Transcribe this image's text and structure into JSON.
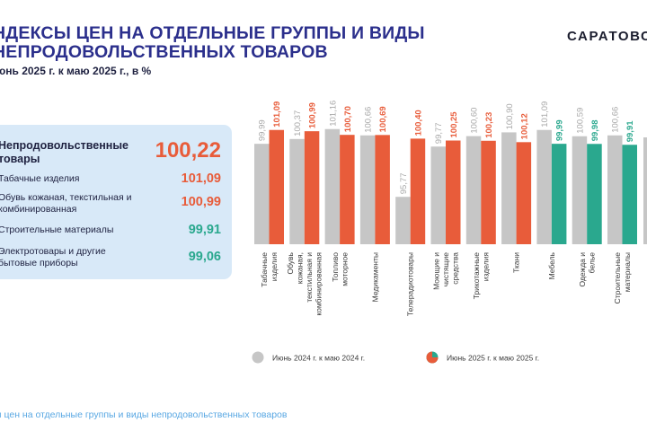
{
  "header": {
    "title_line1": "НДЕКСЫ ЦЕН НА ОТДЕЛЬНЫЕ ГРУППЫ И ВИДЫ",
    "title_line2": "НЕПРОДОВОЛЬСТВЕННЫХ ТОВАРОВ",
    "subtitle": "юнь 2025 г. к маю 2025 г., в %",
    "brand": "САРАТОВС"
  },
  "summary_panel": {
    "rows": [
      {
        "label": "Непродовольственные товары",
        "value": "100,22",
        "color": "#e85c3a"
      },
      {
        "label": "Табачные изделия",
        "value": "101,09",
        "color": "#e85c3a"
      },
      {
        "label": "Обувь кожаная, текстильная и комбинированная",
        "value": "100,99",
        "color": "#e85c3a"
      },
      {
        "label": "Строительные материалы",
        "value": "99,91",
        "color": "#2aa88e"
      },
      {
        "label": "Электротовары и другие бытовые приборы",
        "value": "99,06",
        "color": "#2aa88e"
      }
    ]
  },
  "chart_data": {
    "type": "bar",
    "categories": [
      "Табачные изделия",
      "Обувь кожаная, текстильная и комбинированная",
      "Топливо моторное",
      "Медикаменты",
      "Телерадиотовары",
      "Моющие и чистящие средства",
      "Трикотажные изделия",
      "Ткани",
      "Мебель",
      "Одежда и белье",
      "Строительные материалы"
    ],
    "series": [
      {
        "name": "Июнь  2024 г. к  маю  2024 г.",
        "values": [
          99.99,
          100.37,
          101.16,
          100.66,
          95.77,
          99.77,
          100.6,
          100.9,
          101.09,
          100.59,
          100.66
        ],
        "labels": [
          "99,99",
          "100,37",
          "101,16",
          "100,66",
          "95,77",
          "99,77",
          "100,60",
          "100,90",
          "101,09",
          "100,59",
          "100,66"
        ],
        "color": "#c6c6c6"
      },
      {
        "name": "Июнь  2025 г. к маю  2025 г.",
        "values": [
          101.09,
          100.99,
          100.7,
          100.69,
          100.4,
          100.25,
          100.23,
          100.12,
          99.99,
          99.98,
          99.91
        ],
        "labels": [
          "101,09",
          "100,99",
          "100,70",
          "100,69",
          "100,40",
          "100,25",
          "100,23",
          "100,12",
          "99,99",
          "99,98",
          "99,91"
        ],
        "colors": [
          "#e85c3a",
          "#e85c3a",
          "#e85c3a",
          "#e85c3a",
          "#e85c3a",
          "#e85c3a",
          "#e85c3a",
          "#e85c3a",
          "#2aa88e",
          "#2aa88e",
          "#2aa88e"
        ]
      }
    ],
    "ylim": [
      92,
      102
    ],
    "grid": false,
    "legend": "bottom"
  },
  "footer": {
    "text": "ы цен на отдельные группы и виды непродовольственных товаров"
  }
}
